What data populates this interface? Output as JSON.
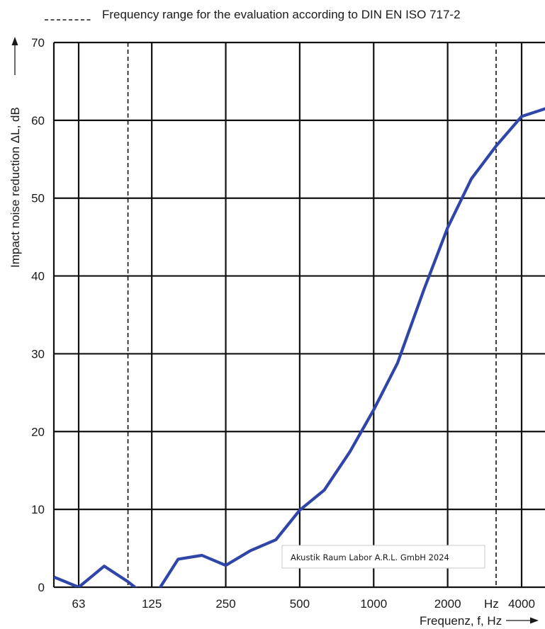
{
  "chart_data": {
    "type": "line",
    "title": "Frequency range for the evaluation according to DIN EN ISO 717-2",
    "ylabel": "Impact noise reduction  ΔL,  dB",
    "xlabel": "Frequenz, f, Hz",
    "x_unit_label": "Hz",
    "x_scale": "log",
    "ylim": [
      0,
      70
    ],
    "y_ticks": [
      0,
      10,
      20,
      30,
      40,
      50,
      60,
      70
    ],
    "x_tick_labels": [
      "63",
      "125",
      "250",
      "500",
      "1000",
      "2000",
      "4000"
    ],
    "x_tick_values": [
      63,
      125,
      250,
      500,
      1000,
      2000,
      4000
    ],
    "evaluation_range_hz": [
      100,
      3150
    ],
    "grid": true,
    "line_color": "#2f45a8",
    "series": [
      {
        "x": [
          50,
          63,
          80,
          100,
          125,
          160,
          200,
          250,
          315,
          400,
          500,
          630,
          800,
          1000,
          1250,
          1600,
          2000,
          2500,
          3150,
          4000,
          5000
        ],
        "values": [
          1.3,
          0,
          2.7,
          0.7,
          -1.7,
          3.6,
          4.1,
          2.8,
          4.7,
          6.1,
          9.9,
          12.5,
          17.4,
          22.8,
          28.8,
          38.2,
          46.2,
          52.5,
          56.7,
          60.5,
          61.5
        ]
      }
    ]
  },
  "watermark": "Akustik Raum Labor A.R.L. GmbH 2024"
}
